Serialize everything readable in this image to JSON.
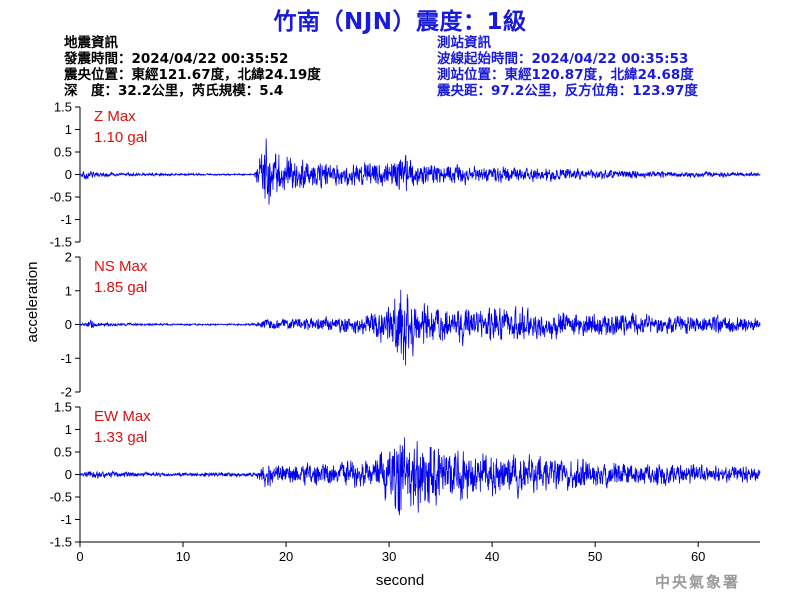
{
  "title": "竹南（NJN）震度：1級",
  "earthquake_info": {
    "heading": "地震資訊",
    "origin_time": "發震時間：2024/04/22 00:35:52",
    "epicenter": "震央位置：東經121.67度，北緯24.19度",
    "depth_magnitude": "深　度：32.2公里，芮氏規模：5.4"
  },
  "station_info": {
    "heading": "測站資訊",
    "wave_start": "波線起始時間：2024/04/22 00:35:53",
    "station_location": "測站位置：東經120.87度，北緯24.68度",
    "distance": "震央距：97.2公里，反方位角：123.97度"
  },
  "credit": "中央氣象署",
  "colors": {
    "trace": "#0000ee",
    "max_label": "#e01010",
    "title": "#1a1adc"
  },
  "chart_data": {
    "type": "line",
    "xlabel": "second",
    "ylabel": "acceleration",
    "xlim": [
      0,
      66
    ],
    "x_ticks": [
      0,
      10,
      20,
      30,
      40,
      50,
      60
    ],
    "grid": false,
    "panels": [
      {
        "name": "Z",
        "max_label": "Z Max",
        "max_value": "1.10 gal",
        "ylim": [
          -1.5,
          1.5
        ],
        "y_ticks": [
          -1.5,
          -1,
          -0.5,
          0,
          0.5,
          1,
          1.5
        ],
        "y_tick_labels": [
          "-1.5",
          "-1",
          "-0.5",
          "0",
          "0.5",
          "1",
          "1.5"
        ],
        "envelope": [
          [
            0,
            0.04
          ],
          [
            0.5,
            0.16
          ],
          [
            1.5,
            0.08
          ],
          [
            4,
            0.05
          ],
          [
            10,
            0.03
          ],
          [
            16.8,
            0.02
          ],
          [
            17.4,
            0.5
          ],
          [
            18.2,
            1.1
          ],
          [
            19.2,
            0.65
          ],
          [
            21,
            0.5
          ],
          [
            23,
            0.4
          ],
          [
            25,
            0.35
          ],
          [
            30,
            0.35
          ],
          [
            31,
            0.6
          ],
          [
            33,
            0.35
          ],
          [
            36,
            0.28
          ],
          [
            40,
            0.24
          ],
          [
            45,
            0.2
          ],
          [
            50,
            0.15
          ],
          [
            55,
            0.1
          ],
          [
            60,
            0.08
          ],
          [
            66,
            0.05
          ]
        ]
      },
      {
        "name": "NS",
        "max_label": "NS Max",
        "max_value": "1.85 gal",
        "ylim": [
          -2,
          2
        ],
        "y_ticks": [
          -2,
          -1,
          0,
          1,
          2
        ],
        "y_tick_labels": [
          "-2",
          "-1",
          "0",
          "1",
          "2"
        ],
        "envelope": [
          [
            0,
            0.04
          ],
          [
            1,
            0.18
          ],
          [
            2,
            0.06
          ],
          [
            10,
            0.03
          ],
          [
            17,
            0.04
          ],
          [
            18,
            0.2
          ],
          [
            22,
            0.25
          ],
          [
            27,
            0.35
          ],
          [
            30,
            0.8
          ],
          [
            31.2,
            1.85
          ],
          [
            32.5,
            1.1
          ],
          [
            34,
            0.8
          ],
          [
            36,
            0.7
          ],
          [
            40,
            0.7
          ],
          [
            45,
            0.55
          ],
          [
            50,
            0.5
          ],
          [
            55,
            0.4
          ],
          [
            60,
            0.35
          ],
          [
            66,
            0.3
          ]
        ]
      },
      {
        "name": "EW",
        "max_label": "EW Max",
        "max_value": "1.33 gal",
        "ylim": [
          -1.5,
          1.5
        ],
        "y_ticks": [
          -1.5,
          -1,
          -0.5,
          0,
          0.5,
          1,
          1.5
        ],
        "y_tick_labels": [
          "-1.5",
          "-1",
          "-0.5",
          "0",
          "0.5",
          "1",
          "1.5"
        ],
        "envelope": [
          [
            0,
            0.05
          ],
          [
            1,
            0.1
          ],
          [
            10,
            0.05
          ],
          [
            17,
            0.06
          ],
          [
            18,
            0.35
          ],
          [
            20,
            0.3
          ],
          [
            25,
            0.35
          ],
          [
            29,
            0.5
          ],
          [
            31,
            1.33
          ],
          [
            32.5,
            1.1
          ],
          [
            34,
            1.0
          ],
          [
            36,
            0.85
          ],
          [
            40,
            0.65
          ],
          [
            45,
            0.5
          ],
          [
            50,
            0.4
          ],
          [
            55,
            0.33
          ],
          [
            60,
            0.3
          ],
          [
            66,
            0.22
          ]
        ]
      }
    ]
  }
}
